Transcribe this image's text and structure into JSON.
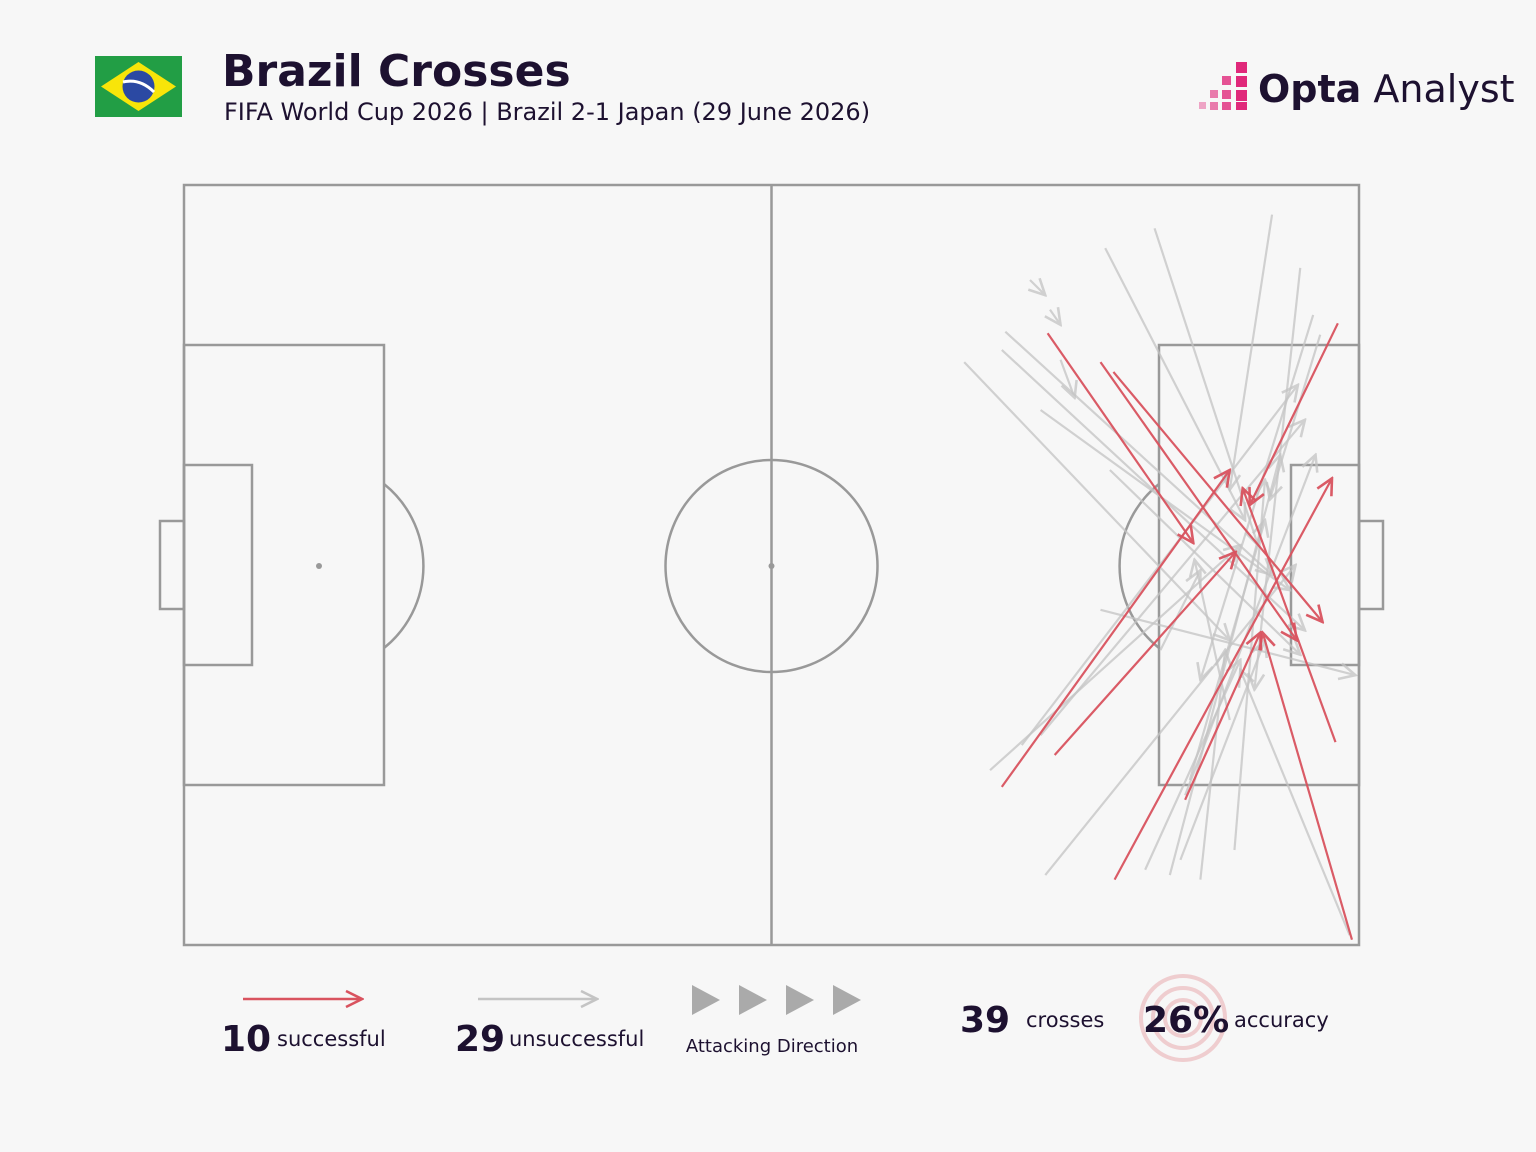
{
  "header": {
    "title": "Brazil Crosses",
    "subtitle": "FIFA World Cup 2026 | Brazil 2-1 Japan (29 June 2026)"
  },
  "brand": {
    "name": "Opta",
    "product": "Analyst"
  },
  "chart_data": {
    "type": "pitch",
    "xlim": [
      0,
      100
    ],
    "ylim": [
      0,
      100
    ],
    "direction_label": "Attacking Direction",
    "series": [
      {
        "name": "successful",
        "color": "#d9535f",
        "count": 10,
        "crosses": [
          {
            "start": [
              73.5,
              19.5
            ],
            "end": [
              85.9,
              47.1
            ]
          },
          {
            "start": [
              78.0,
              23.3
            ],
            "end": [
              94.7,
              59.9
            ]
          },
          {
            "start": [
              79.1,
              24.6
            ],
            "end": [
              96.9,
              57.5
            ]
          },
          {
            "start": [
              98.2,
              18.2
            ],
            "end": [
              90.7,
              42.1
            ]
          },
          {
            "start": [
              69.6,
              79.2
            ],
            "end": [
              89.0,
              37.5
            ]
          },
          {
            "start": [
              74.1,
              75.0
            ],
            "end": [
              89.5,
              48.3
            ]
          },
          {
            "start": [
              79.2,
              91.4
            ],
            "end": [
              97.7,
              38.6
            ]
          },
          {
            "start": [
              98.0,
              73.3
            ],
            "end": [
              90.1,
              39.9
            ]
          },
          {
            "start": [
              99.4,
              99.3
            ],
            "end": [
              91.8,
              58.9
            ]
          },
          {
            "start": [
              85.2,
              80.9
            ],
            "end": [
              91.6,
              58.9
            ]
          }
        ]
      },
      {
        "name": "unsuccessful",
        "color": "#c4c4c4",
        "count": 29,
        "crosses": [
          {
            "start": [
              92.6,
              3.9
            ],
            "end": [
              89.0,
              40.1
            ]
          },
          {
            "start": [
              82.6,
              5.7
            ],
            "end": [
              91.4,
              47.4
            ]
          },
          {
            "start": [
              78.4,
              8.3
            ],
            "end": [
              90.3,
              44.1
            ]
          },
          {
            "start": [
              95.0,
              10.9
            ],
            "end": [
              91.1,
              66.4
            ]
          },
          {
            "start": [
              96.1,
              17.1
            ],
            "end": [
              86.5,
              65.1
            ]
          },
          {
            "start": [
              66.4,
              23.3
            ],
            "end": [
              89.0,
              59.9
            ]
          },
          {
            "start": [
              69.9,
              19.3
            ],
            "end": [
              92.6,
              51.3
            ]
          },
          {
            "start": [
              69.6,
              21.7
            ],
            "end": [
              95.4,
              58.6
            ]
          },
          {
            "start": [
              72.9,
              29.6
            ],
            "end": [
              94.1,
              53.3
            ]
          },
          {
            "start": [
              72.0,
              12.5
            ],
            "end": [
              73.3,
              14.5
            ]
          },
          {
            "start": [
              73.7,
              16.4
            ],
            "end": [
              74.6,
              18.4
            ]
          },
          {
            "start": [
              74.6,
              23.0
            ],
            "end": [
              75.8,
              28.0
            ]
          },
          {
            "start": [
              68.6,
              77.0
            ],
            "end": [
              89.9,
              47.4
            ]
          },
          {
            "start": [
              73.3,
              90.8
            ],
            "end": [
              94.6,
              50.0
            ]
          },
          {
            "start": [
              71.3,
              73.7
            ],
            "end": [
              94.8,
              26.3
            ]
          },
          {
            "start": [
              72.9,
              72.4
            ],
            "end": [
              95.4,
              30.9
            ]
          },
          {
            "start": [
              85.2,
              80.3
            ],
            "end": [
              96.3,
              35.5
            ]
          },
          {
            "start": [
              89.4,
              87.5
            ],
            "end": [
              92.0,
              38.8
            ]
          },
          {
            "start": [
              81.8,
              90.1
            ],
            "end": [
              89.9,
              62.5
            ]
          },
          {
            "start": [
              83.9,
              90.8
            ],
            "end": [
              93.3,
              35.5
            ]
          },
          {
            "start": [
              86.5,
              91.4
            ],
            "end": [
              88.6,
              61.2
            ]
          },
          {
            "start": [
              84.8,
              88.8
            ],
            "end": [
              92.0,
              59.9
            ]
          },
          {
            "start": [
              99.2,
              98.7
            ],
            "end": [
              89.9,
              63.8
            ]
          },
          {
            "start": [
              85.6,
              78.3
            ],
            "end": [
              92.0,
              44.1
            ]
          },
          {
            "start": [
              83.1,
              61.2
            ],
            "end": [
              86.5,
              50.7
            ]
          },
          {
            "start": [
              89.0,
              70.4
            ],
            "end": [
              86.0,
              49.3
            ]
          },
          {
            "start": [
              78.8,
              37.5
            ],
            "end": [
              95.0,
              61.8
            ]
          },
          {
            "start": [
              96.7,
              19.7
            ],
            "end": [
              92.4,
              41.4
            ]
          },
          {
            "start": [
              78.0,
              55.9
            ],
            "end": [
              99.7,
              64.5
            ]
          }
        ]
      }
    ],
    "total": {
      "value": 39,
      "label": "crosses"
    },
    "accuracy": {
      "value": {
        "value": 26,
        "label": "26%"
      },
      "label": "accuracy"
    }
  }
}
